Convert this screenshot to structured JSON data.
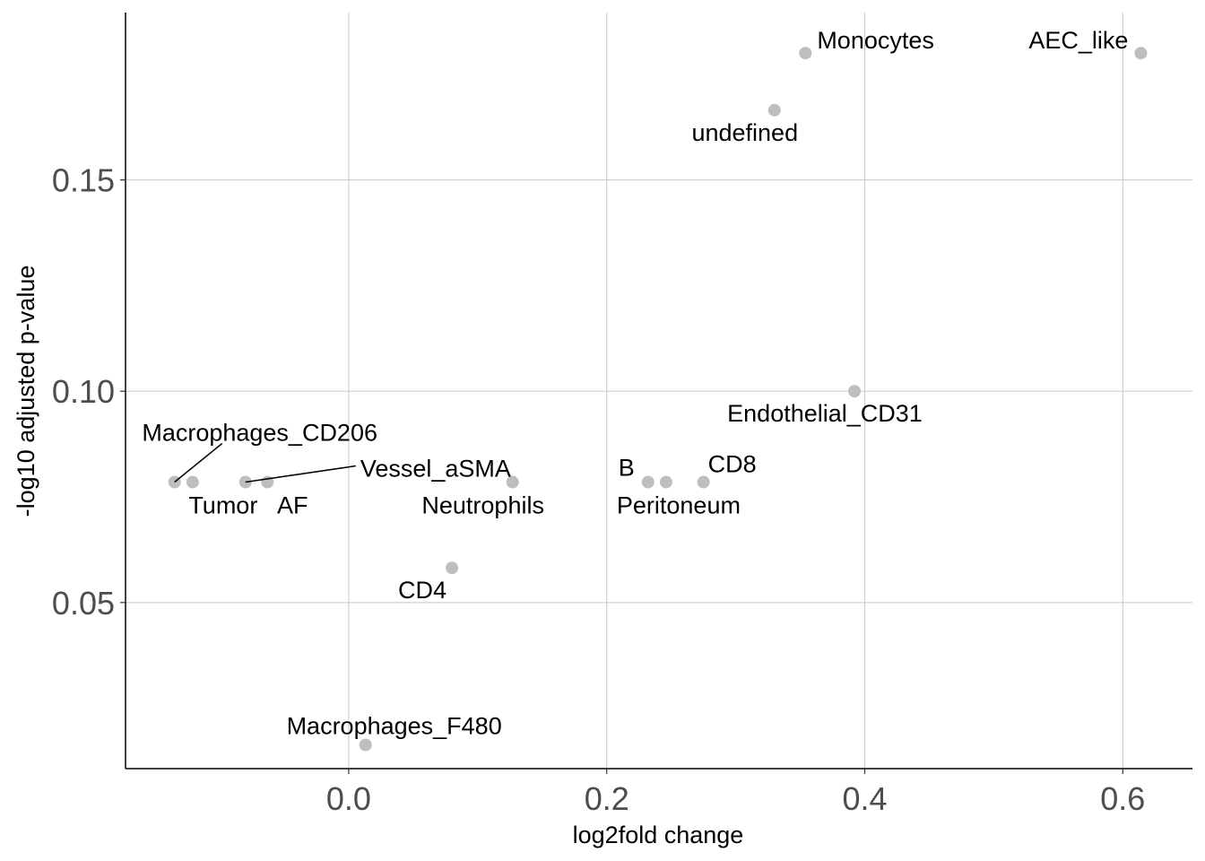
{
  "chart_data": {
    "type": "scatter",
    "title": "",
    "xlabel": "log2fold change",
    "ylabel": "-log10 adjusted p-value",
    "xlim": [
      -0.173,
      0.654
    ],
    "ylim": [
      0.0107,
      0.1896
    ],
    "x_ticks": [
      0.0,
      0.2,
      0.4,
      0.6
    ],
    "x_tick_labels": [
      "0.0",
      "0.2",
      "0.4",
      "0.6"
    ],
    "y_ticks": [
      0.05,
      0.1,
      0.15
    ],
    "y_tick_labels": [
      "0.05",
      "0.10",
      "0.15"
    ],
    "grid": true,
    "legend": "none",
    "point_color": "#bebebe",
    "grid_color": "#c8c8c8",
    "axis_color": "#000000",
    "points": [
      {
        "label": "AEC_like",
        "x": 0.614,
        "y": 0.18
      },
      {
        "label": "Monocytes",
        "x": 0.354,
        "y": 0.18
      },
      {
        "label": "undefined",
        "x": 0.33,
        "y": 0.1665
      },
      {
        "label": "Endothelial_CD31",
        "x": 0.392,
        "y": 0.1
      },
      {
        "label": "Macrophages_CD206",
        "x": -0.135,
        "y": 0.0785
      },
      {
        "label": "Tumor",
        "x": -0.121,
        "y": 0.0785
      },
      {
        "label": "Vessel_aSMA",
        "x": -0.08,
        "y": 0.0785
      },
      {
        "label": "AF",
        "x": -0.063,
        "y": 0.0785
      },
      {
        "label": "Neutrophils",
        "x": 0.127,
        "y": 0.0785
      },
      {
        "label": "B",
        "x": 0.232,
        "y": 0.0785
      },
      {
        "label": "Peritoneum",
        "x": 0.246,
        "y": 0.0785
      },
      {
        "label": "CD8",
        "x": 0.275,
        "y": 0.0785
      },
      {
        "label": "CD4",
        "x": 0.08,
        "y": 0.0582
      },
      {
        "label": "Macrophages_F480",
        "x": 0.013,
        "y": 0.0163
      }
    ]
  }
}
